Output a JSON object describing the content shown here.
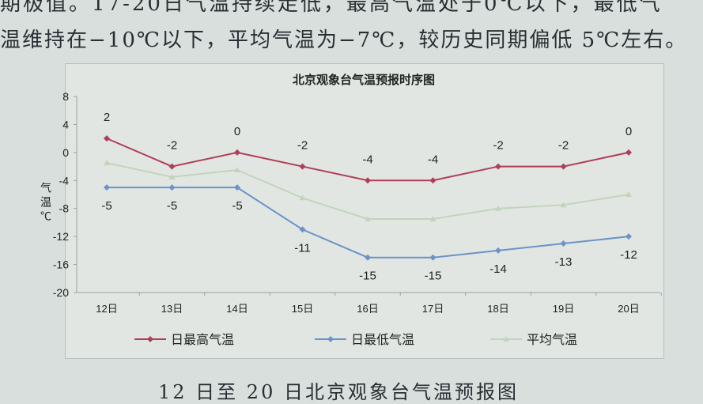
{
  "document": {
    "text_line_1": "期极值。17-20日气温持续走低，最高气温处于0℃以下，最低气",
    "text_line_2": "温维持在−10℃以下，平均气温为−7℃，较历史同期偏低 5℃左右。",
    "caption": "12 日至 20 日北京观象台气温预报图"
  },
  "chart_data": {
    "type": "line",
    "title": "北京观象台气温预报时序图",
    "ylabel": "气温℃",
    "xlabel": "",
    "categories": [
      "12日",
      "13日",
      "14日",
      "15日",
      "16日",
      "17日",
      "18日",
      "19日",
      "20日"
    ],
    "ylim": [
      -20,
      8
    ],
    "yticks": [
      8,
      4,
      0,
      -4,
      -8,
      -12,
      -16,
      -20
    ],
    "grid": false,
    "legend_position": "bottom",
    "series": [
      {
        "name": "日最高气温",
        "color": "#b03e58",
        "values": [
          2,
          -2,
          0,
          -2,
          -4,
          -4,
          -2,
          -2,
          0
        ],
        "labels": true
      },
      {
        "name": "日最低气温",
        "color": "#6b93c6",
        "values": [
          -5,
          -5,
          -5,
          -11,
          -15,
          -15,
          -14,
          -13,
          -12
        ],
        "labels": true
      },
      {
        "name": "平均气温",
        "color": "#c3d4bd",
        "values": [
          -1.5,
          -3.5,
          -2.5,
          -6.5,
          -9.5,
          -9.5,
          -8,
          -7.5,
          -6
        ],
        "labels": false
      }
    ]
  }
}
